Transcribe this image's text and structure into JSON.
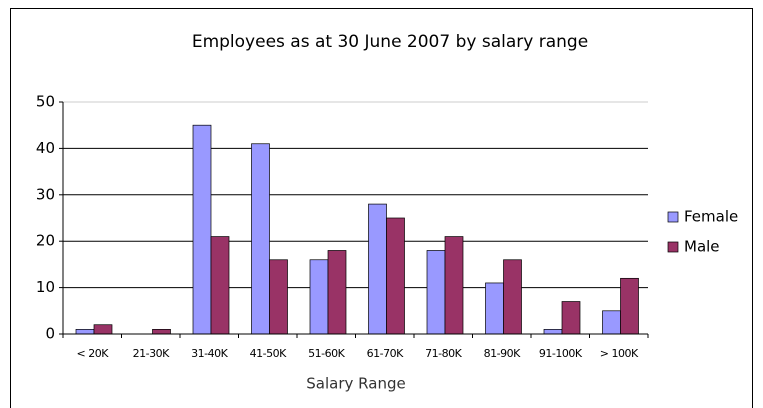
{
  "chart_data": {
    "type": "bar",
    "title": "Employees as at 30 June 2007 by salary range",
    "x_label": "Salary Range",
    "categories": [
      "< 20K",
      "21-30K",
      "31-40K",
      "41-50K",
      "51-60K",
      "61-70K",
      "71-80K",
      "81-90K",
      "91-100K",
      "> 100K"
    ],
    "series": [
      {
        "name": "Female",
        "color": "#9999ff",
        "values": [
          1,
          0,
          45,
          41,
          16,
          28,
          18,
          11,
          1,
          5
        ]
      },
      {
        "name": "Male",
        "color": "#993366",
        "values": [
          2,
          1,
          21,
          16,
          18,
          25,
          21,
          16,
          7,
          12
        ]
      }
    ],
    "ylim": [
      0,
      50
    ],
    "yticks": [
      0,
      10,
      20,
      30,
      40,
      50
    ],
    "grid": true,
    "legend": "right"
  }
}
